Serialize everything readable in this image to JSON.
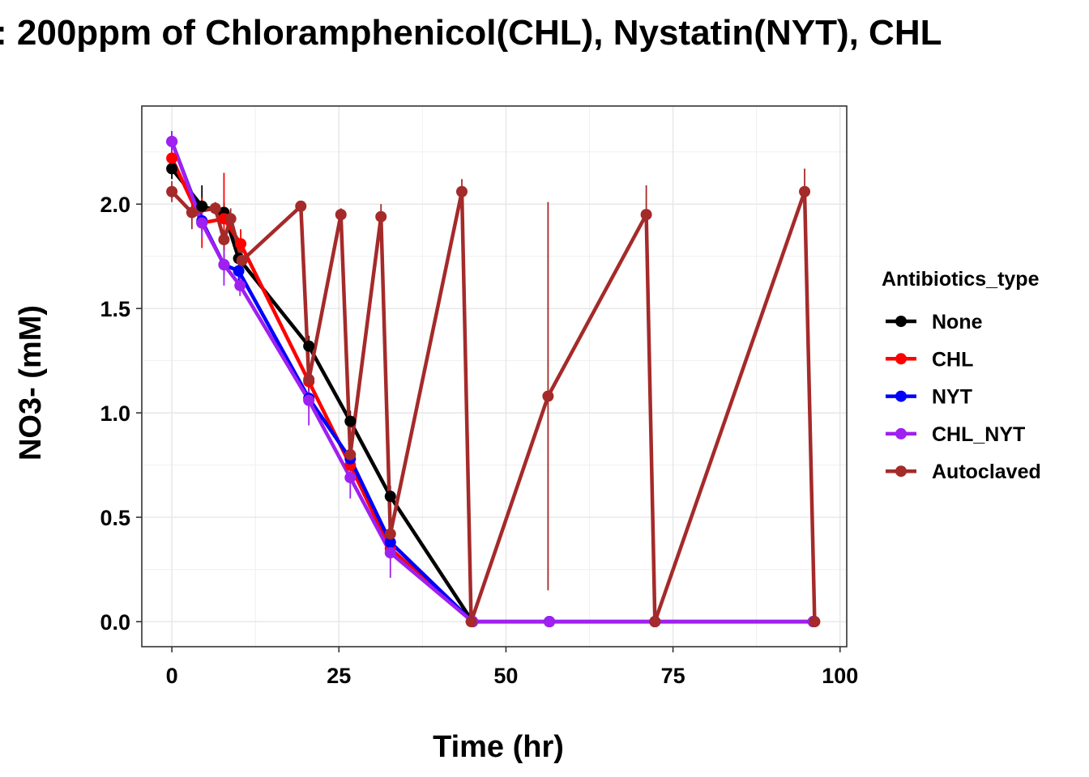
{
  "chart_data": {
    "type": "line",
    "title": ": 200ppm of Chloramphenicol(CHL), Nystatin(NYT), CHL",
    "xlabel": "Time (hr)",
    "ylabel": "NO3- (mM)",
    "xlim": [
      -4.5,
      101
    ],
    "ylim": [
      -0.12,
      2.47
    ],
    "x_ticks": [
      0,
      25,
      50,
      75,
      100
    ],
    "x_tick_labels": [
      "0",
      "25",
      "50",
      "75",
      "100"
    ],
    "y_ticks": [
      0.0,
      0.5,
      1.0,
      1.5,
      2.0
    ],
    "y_tick_labels": [
      "0.0",
      "0.5",
      "1.0",
      "1.5",
      "2.0"
    ],
    "grid": true,
    "legend": {
      "title": "Antibiotics_type",
      "position": "right",
      "entries": [
        "None",
        "CHL",
        "NYT",
        "CHL_NYT",
        "Autoclaved"
      ]
    },
    "series": [
      {
        "name": "None",
        "color": "#000000",
        "points": [
          {
            "x": 0,
            "y": 2.17,
            "err": 0.05
          },
          {
            "x": 4.5,
            "y": 1.99,
            "err": 0.1
          },
          {
            "x": 7.8,
            "y": 1.96,
            "err": 0.05
          },
          {
            "x": 10,
            "y": 1.74,
            "err": 0.05
          },
          {
            "x": 20.5,
            "y": 1.32,
            "err": 0.05
          },
          {
            "x": 26.7,
            "y": 0.96,
            "err": 0.05
          },
          {
            "x": 32.7,
            "y": 0.6,
            "err": 0.05
          },
          {
            "x": 45,
            "y": 0.0,
            "err": 0
          },
          {
            "x": 56.5,
            "y": 0.0,
            "err": 0
          },
          {
            "x": 72.3,
            "y": 0.0,
            "err": 0
          },
          {
            "x": 96,
            "y": 0.0,
            "err": 0
          }
        ]
      },
      {
        "name": "CHL",
        "color": "#ff0000",
        "points": [
          {
            "x": 0,
            "y": 2.22,
            "err": 0.05
          },
          {
            "x": 4.5,
            "y": 1.91,
            "err": 0.12
          },
          {
            "x": 7.8,
            "y": 1.93,
            "err": 0.22
          },
          {
            "x": 10.3,
            "y": 1.81,
            "err": 0.07
          },
          {
            "x": 20.5,
            "y": 1.15,
            "err": 0.1
          },
          {
            "x": 26.7,
            "y": 0.75,
            "err": 0.07
          },
          {
            "x": 32.7,
            "y": 0.35,
            "err": 0.05
          },
          {
            "x": 45,
            "y": 0.0,
            "err": 0
          },
          {
            "x": 56.5,
            "y": 0.0,
            "err": 0
          },
          {
            "x": 72.3,
            "y": 0.0,
            "err": 0
          },
          {
            "x": 96,
            "y": 0.0,
            "err": 0
          }
        ]
      },
      {
        "name": "NYT",
        "color": "#0000ff",
        "points": [
          {
            "x": 0,
            "y": 2.3,
            "err": 0.05
          },
          {
            "x": 4.5,
            "y": 1.92,
            "err": 0.05
          },
          {
            "x": 7.8,
            "y": 1.71,
            "err": 0.05
          },
          {
            "x": 10,
            "y": 1.68,
            "err": 0.05
          },
          {
            "x": 20.5,
            "y": 1.07,
            "err": 0.05
          },
          {
            "x": 26.7,
            "y": 0.78,
            "err": 0.05
          },
          {
            "x": 32.7,
            "y": 0.38,
            "err": 0.05
          },
          {
            "x": 45,
            "y": 0.0,
            "err": 0
          },
          {
            "x": 56.5,
            "y": 0.0,
            "err": 0
          },
          {
            "x": 72.3,
            "y": 0.0,
            "err": 0
          },
          {
            "x": 96,
            "y": 0.0,
            "err": 0
          }
        ]
      },
      {
        "name": "CHL_NYT",
        "color": "#a020f0",
        "points": [
          {
            "x": 0,
            "y": 2.3,
            "err": 0.05
          },
          {
            "x": 4.5,
            "y": 1.91,
            "err": 0.07
          },
          {
            "x": 7.8,
            "y": 1.71,
            "err": 0.1
          },
          {
            "x": 10.2,
            "y": 1.61,
            "err": 0.05
          },
          {
            "x": 20.5,
            "y": 1.06,
            "err": 0.12
          },
          {
            "x": 26.7,
            "y": 0.69,
            "err": 0.1
          },
          {
            "x": 32.7,
            "y": 0.33,
            "err": 0.12
          },
          {
            "x": 45,
            "y": 0.0,
            "err": 0
          },
          {
            "x": 56.5,
            "y": 0.0,
            "err": 0
          },
          {
            "x": 72.3,
            "y": 0.0,
            "err": 0
          },
          {
            "x": 96,
            "y": 0.0,
            "err": 0
          }
        ]
      },
      {
        "name": "Autoclaved",
        "color": "#a52a2a",
        "points": [
          {
            "x": 0,
            "y": 2.06,
            "err": 0.05
          },
          {
            "x": 3,
            "y": 1.96,
            "err": 0.08
          },
          {
            "x": 6.5,
            "y": 1.98,
            "err": 0.03
          },
          {
            "x": 7.8,
            "y": 1.83,
            "err": 0.05
          },
          {
            "x": 8.8,
            "y": 1.93,
            "err": 0.05
          },
          {
            "x": 10.5,
            "y": 1.73,
            "err": 0.05
          },
          {
            "x": 19.3,
            "y": 1.99,
            "err": 0.02
          },
          {
            "x": 20.5,
            "y": 1.16,
            "err": 0.05
          },
          {
            "x": 25.3,
            "y": 1.95,
            "err": 0.03
          },
          {
            "x": 26.7,
            "y": 0.8,
            "err": 0.05
          },
          {
            "x": 31.3,
            "y": 1.94,
            "err": 0.06
          },
          {
            "x": 32.7,
            "y": 0.42,
            "err": 0.05
          },
          {
            "x": 43.4,
            "y": 2.06,
            "err": 0.06
          },
          {
            "x": 44.8,
            "y": 0.0,
            "err": 0
          },
          {
            "x": 56.3,
            "y": 1.08,
            "err": 0.93
          },
          {
            "x": 71,
            "y": 1.95,
            "err": 0.14
          },
          {
            "x": 72.3,
            "y": 0.0,
            "err": 0
          },
          {
            "x": 94.7,
            "y": 2.06,
            "err": 0.11
          },
          {
            "x": 96.2,
            "y": 0.0,
            "err": 0
          }
        ]
      }
    ]
  }
}
